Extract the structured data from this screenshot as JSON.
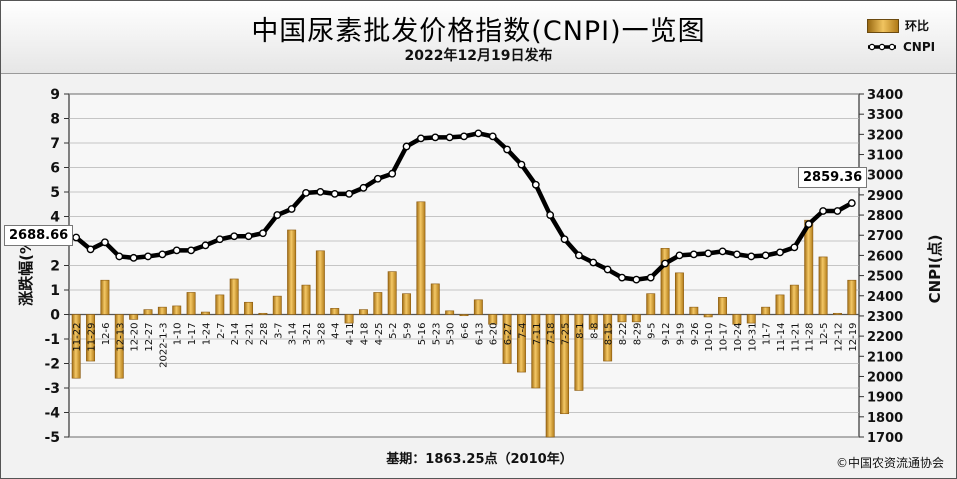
{
  "header": {
    "title": "中国尿素批发价格指数(CNPI)一览图",
    "subtitle": "2022年12月19日发布"
  },
  "legend": {
    "bar_label": "环比",
    "line_label": "CNPI"
  },
  "callouts": {
    "left": "2688.66",
    "right": "2859.36"
  },
  "footer": {
    "basis": "基期：1863.25点（2010年）",
    "copyright": "©中国农资流通协会"
  },
  "colors": {
    "bar_fill": "#e0a838",
    "bar_edge": "#8a5a10",
    "line": "#000000",
    "marker_fill": "#ffffff",
    "grid": "#b4b4b4",
    "background": "#f2f2f2"
  },
  "chart_data": {
    "type": "bar+line",
    "categories": [
      "11-22",
      "11-29",
      "12-6",
      "12-13",
      "12-20",
      "12-27",
      "2022-1-3",
      "1-10",
      "1-17",
      "1-24",
      "2-7",
      "2-14",
      "2-21",
      "2-28",
      "3-7",
      "3-14",
      "3-21",
      "3-28",
      "4-4",
      "4-11",
      "4-18",
      "4-25",
      "5-2",
      "5-9",
      "5-16",
      "5-23",
      "5-30",
      "6-6",
      "6-13",
      "6-20",
      "6-27",
      "7-4",
      "7-11",
      "7-18",
      "7-25",
      "8-1",
      "8-8",
      "8-15",
      "8-22",
      "8-29",
      "9-5",
      "9-12",
      "9-19",
      "9-26",
      "10-10",
      "10-17",
      "10-24",
      "10-31",
      "11-7",
      "11-14",
      "11-21",
      "11-28",
      "12-5",
      "12-12",
      "12-19"
    ],
    "series": [
      {
        "name": "环比",
        "axis": "left",
        "type": "bar",
        "values": [
          -2.6,
          -1.9,
          1.4,
          -2.6,
          -0.2,
          0.2,
          0.3,
          0.35,
          0.9,
          0.1,
          0.8,
          1.45,
          0.5,
          0.05,
          0.75,
          3.45,
          1.2,
          2.6,
          0.25,
          -0.35,
          0.2,
          0.9,
          1.75,
          0.85,
          4.6,
          1.25,
          0.15,
          -0.05,
          0.6,
          -0.4,
          -2.0,
          -2.35,
          -3.0,
          -5.0,
          -4.05,
          -3.1,
          -0.6,
          -1.9,
          -0.3,
          -0.3,
          0.85,
          2.7,
          1.7,
          0.3,
          -0.1,
          0.7,
          -0.4,
          -0.35,
          0.3,
          0.8,
          1.2,
          3.85,
          2.35,
          0.05,
          1.4
        ]
      },
      {
        "name": "CNPI",
        "axis": "right",
        "type": "line",
        "values": [
          2688.66,
          2630,
          2665,
          2595,
          2588,
          2595,
          2605,
          2625,
          2625,
          2650,
          2680,
          2695,
          2695,
          2710,
          2800,
          2830,
          2910,
          2915,
          2905,
          2905,
          2935,
          2980,
          3005,
          3140,
          3180,
          3185,
          3185,
          3190,
          3205,
          3190,
          3125,
          3050,
          2950,
          2800,
          2680,
          2600,
          2565,
          2530,
          2490,
          2480,
          2490,
          2560,
          2600,
          2605,
          2610,
          2620,
          2605,
          2595,
          2600,
          2615,
          2640,
          2755,
          2820,
          2820,
          2859.36
        ]
      }
    ],
    "y_left": {
      "label": "涨跌幅(%)",
      "min": -5,
      "max": 9,
      "ticks": [
        9,
        8,
        7,
        6,
        5,
        4,
        3,
        2,
        1,
        0,
        -1,
        -2,
        -3,
        -4,
        -5
      ]
    },
    "y_right": {
      "label": "CNPI(点)",
      "min": 1700,
      "max": 3400,
      "ticks": [
        3400,
        3300,
        3200,
        3100,
        3000,
        2900,
        2800,
        2700,
        2600,
        2500,
        2400,
        2300,
        2200,
        2100,
        2000,
        1900,
        1800,
        1700
      ]
    },
    "grid": true,
    "legend_position": "top-right"
  }
}
